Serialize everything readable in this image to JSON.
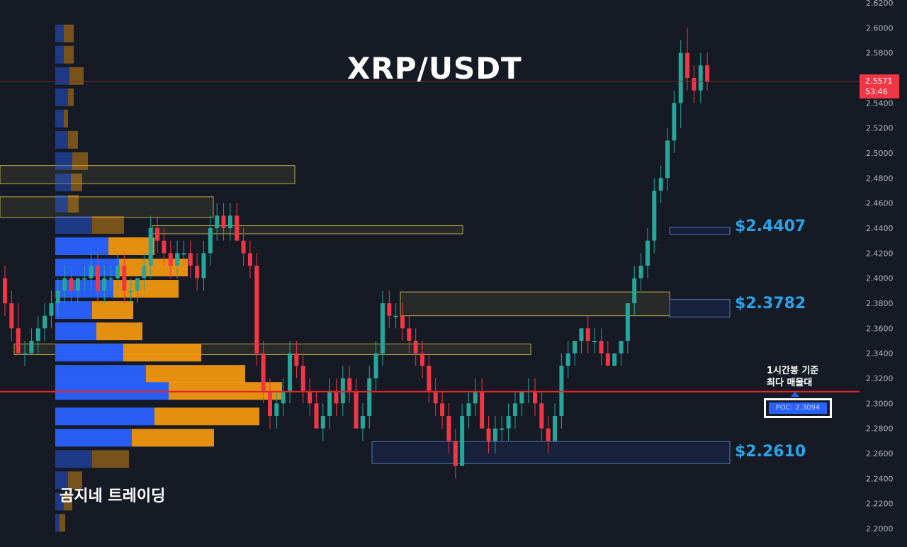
{
  "title": "XRP/USDT",
  "watermark": "곰지네 트레이딩",
  "levels": [
    {
      "label": "$2.4407",
      "price": 2.4407
    },
    {
      "label": "$2.3782",
      "price": 2.3782
    },
    {
      "label": "$2.2610",
      "price": 2.261
    }
  ],
  "annotation": {
    "line1": "1시간봉 기준",
    "line2": "최다 매물대"
  },
  "poc_label": "POC: 2.3094",
  "current_price": {
    "price": "2.5571",
    "countdown": "53:46"
  },
  "colors": {
    "background": "#161a25",
    "up": "#26a69a",
    "down": "#f23645",
    "level_text": "#2aa3e8",
    "poc_line": "#e0262b",
    "vp_blue": "#2962ff",
    "vp_orange": "#f0960f"
  },
  "chart_data": {
    "type": "candlestick",
    "title": "XRP/USDT",
    "timeframe": "1h",
    "ylim": [
      2.19,
      2.625
    ],
    "y_ticks": [
      "2.6200",
      "2.6000",
      "2.5800",
      "2.5400",
      "2.5200",
      "2.5000",
      "2.4800",
      "2.4600",
      "2.4400",
      "2.4200",
      "2.4000",
      "2.3800",
      "2.3600",
      "2.3400",
      "2.3200",
      "2.3000",
      "2.2800",
      "2.2600",
      "2.2400",
      "2.2200",
      "2.2000"
    ],
    "poc": 2.3094,
    "last_price": 2.5571,
    "candles": [
      [
        2.4,
        2.41,
        2.37,
        2.38
      ],
      [
        2.38,
        2.39,
        2.35,
        2.36
      ],
      [
        2.36,
        2.38,
        2.34,
        2.34
      ],
      [
        2.34,
        2.35,
        2.33,
        2.34
      ],
      [
        2.34,
        2.36,
        2.34,
        2.35
      ],
      [
        2.35,
        2.37,
        2.34,
        2.36
      ],
      [
        2.36,
        2.38,
        2.35,
        2.37
      ],
      [
        2.37,
        2.39,
        2.36,
        2.38
      ],
      [
        2.38,
        2.4,
        2.37,
        2.39
      ],
      [
        2.39,
        2.41,
        2.38,
        2.4
      ],
      [
        2.4,
        2.41,
        2.38,
        2.39
      ],
      [
        2.39,
        2.4,
        2.38,
        2.4
      ],
      [
        2.4,
        2.41,
        2.39,
        2.4
      ],
      [
        2.4,
        2.42,
        2.39,
        2.41
      ],
      [
        2.41,
        2.42,
        2.38,
        2.39
      ],
      [
        2.39,
        2.41,
        2.38,
        2.4
      ],
      [
        2.4,
        2.41,
        2.39,
        2.4
      ],
      [
        2.4,
        2.42,
        2.39,
        2.41
      ],
      [
        2.41,
        2.42,
        2.38,
        2.39
      ],
      [
        2.39,
        2.4,
        2.38,
        2.39
      ],
      [
        2.39,
        2.4,
        2.38,
        2.4
      ],
      [
        2.4,
        2.42,
        2.39,
        2.41
      ],
      [
        2.41,
        2.45,
        2.4,
        2.44
      ],
      [
        2.44,
        2.45,
        2.42,
        2.43
      ],
      [
        2.43,
        2.44,
        2.41,
        2.42
      ],
      [
        2.42,
        2.43,
        2.4,
        2.41
      ],
      [
        2.41,
        2.43,
        2.4,
        2.42
      ],
      [
        2.42,
        2.43,
        2.41,
        2.42
      ],
      [
        2.42,
        2.43,
        2.4,
        2.41
      ],
      [
        2.41,
        2.42,
        2.39,
        2.4
      ],
      [
        2.4,
        2.43,
        2.39,
        2.42
      ],
      [
        2.42,
        2.45,
        2.41,
        2.44
      ],
      [
        2.44,
        2.46,
        2.43,
        2.45
      ],
      [
        2.45,
        2.46,
        2.43,
        2.44
      ],
      [
        2.44,
        2.46,
        2.43,
        2.45
      ],
      [
        2.45,
        2.46,
        2.43,
        2.43
      ],
      [
        2.43,
        2.44,
        2.41,
        2.42
      ],
      [
        2.42,
        2.43,
        2.4,
        2.41
      ],
      [
        2.41,
        2.42,
        2.33,
        2.34
      ],
      [
        2.34,
        2.35,
        2.3,
        2.31
      ],
      [
        2.31,
        2.32,
        2.28,
        2.29
      ],
      [
        2.29,
        2.31,
        2.28,
        2.3
      ],
      [
        2.3,
        2.32,
        2.29,
        2.31
      ],
      [
        2.31,
        2.35,
        2.3,
        2.34
      ],
      [
        2.34,
        2.35,
        2.32,
        2.33
      ],
      [
        2.33,
        2.34,
        2.3,
        2.31
      ],
      [
        2.31,
        2.32,
        2.29,
        2.3
      ],
      [
        2.3,
        2.31,
        2.28,
        2.28
      ],
      [
        2.28,
        2.3,
        2.27,
        2.29
      ],
      [
        2.29,
        2.32,
        2.28,
        2.31
      ],
      [
        2.31,
        2.32,
        2.29,
        2.3
      ],
      [
        2.3,
        2.33,
        2.29,
        2.32
      ],
      [
        2.32,
        2.33,
        2.3,
        2.31
      ],
      [
        2.31,
        2.32,
        2.28,
        2.28
      ],
      [
        2.28,
        2.3,
        2.27,
        2.29
      ],
      [
        2.29,
        2.33,
        2.28,
        2.32
      ],
      [
        2.32,
        2.35,
        2.31,
        2.34
      ],
      [
        2.34,
        2.39,
        2.33,
        2.38
      ],
      [
        2.38,
        2.39,
        2.36,
        2.37
      ],
      [
        2.37,
        2.38,
        2.36,
        2.37
      ],
      [
        2.37,
        2.38,
        2.35,
        2.36
      ],
      [
        2.36,
        2.37,
        2.34,
        2.35
      ],
      [
        2.35,
        2.36,
        2.33,
        2.34
      ],
      [
        2.34,
        2.35,
        2.32,
        2.33
      ],
      [
        2.33,
        2.34,
        2.3,
        2.31
      ],
      [
        2.31,
        2.32,
        2.29,
        2.3
      ],
      [
        2.3,
        2.31,
        2.28,
        2.29
      ],
      [
        2.29,
        2.3,
        2.26,
        2.27
      ],
      [
        2.27,
        2.28,
        2.24,
        2.25
      ],
      [
        2.25,
        2.3,
        2.25,
        2.29
      ],
      [
        2.29,
        2.31,
        2.28,
        2.3
      ],
      [
        2.3,
        2.32,
        2.29,
        2.31
      ],
      [
        2.31,
        2.32,
        2.28,
        2.28
      ],
      [
        2.28,
        2.29,
        2.26,
        2.27
      ],
      [
        2.27,
        2.29,
        2.26,
        2.28
      ],
      [
        2.28,
        2.29,
        2.27,
        2.28
      ],
      [
        2.28,
        2.3,
        2.27,
        2.29
      ],
      [
        2.29,
        2.31,
        2.28,
        2.3
      ],
      [
        2.3,
        2.31,
        2.29,
        2.31
      ],
      [
        2.31,
        2.32,
        2.3,
        2.31
      ],
      [
        2.31,
        2.32,
        2.29,
        2.3
      ],
      [
        2.3,
        2.31,
        2.27,
        2.28
      ],
      [
        2.28,
        2.29,
        2.26,
        2.27
      ],
      [
        2.27,
        2.3,
        2.27,
        2.29
      ],
      [
        2.29,
        2.34,
        2.28,
        2.33
      ],
      [
        2.33,
        2.35,
        2.32,
        2.34
      ],
      [
        2.34,
        2.35,
        2.33,
        2.35
      ],
      [
        2.35,
        2.36,
        2.34,
        2.36
      ],
      [
        2.36,
        2.37,
        2.34,
        2.35
      ],
      [
        2.35,
        2.36,
        2.34,
        2.35
      ],
      [
        2.35,
        2.36,
        2.33,
        2.34
      ],
      [
        2.34,
        2.35,
        2.33,
        2.33
      ],
      [
        2.33,
        2.34,
        2.33,
        2.34
      ],
      [
        2.34,
        2.35,
        2.33,
        2.35
      ],
      [
        2.35,
        2.38,
        2.34,
        2.38
      ],
      [
        2.38,
        2.41,
        2.37,
        2.4
      ],
      [
        2.4,
        2.42,
        2.39,
        2.41
      ],
      [
        2.41,
        2.44,
        2.4,
        2.43
      ],
      [
        2.43,
        2.48,
        2.42,
        2.47
      ],
      [
        2.47,
        2.49,
        2.46,
        2.48
      ],
      [
        2.48,
        2.52,
        2.47,
        2.51
      ],
      [
        2.51,
        2.55,
        2.5,
        2.54
      ],
      [
        2.54,
        2.59,
        2.52,
        2.58
      ],
      [
        2.58,
        2.6,
        2.55,
        2.56
      ],
      [
        2.56,
        2.57,
        2.54,
        2.55
      ],
      [
        2.55,
        2.58,
        2.54,
        2.57
      ],
      [
        2.57,
        2.58,
        2.55,
        2.5571
      ]
    ],
    "volume_profile": [
      {
        "price": 2.595,
        "up": 12,
        "down": 14
      },
      {
        "price": 2.578,
        "up": 12,
        "down": 14
      },
      {
        "price": 2.561,
        "up": 20,
        "down": 20
      },
      {
        "price": 2.544,
        "up": 18,
        "down": 8
      },
      {
        "price": 2.527,
        "up": 12,
        "down": 6
      },
      {
        "price": 2.51,
        "up": 18,
        "down": 14
      },
      {
        "price": 2.493,
        "up": 24,
        "down": 22
      },
      {
        "price": 2.476,
        "up": 22,
        "down": 16
      },
      {
        "price": 2.459,
        "up": 18,
        "down": 15
      },
      {
        "price": 2.442,
        "up": 52,
        "down": 45
      },
      {
        "price": 2.425,
        "up": 75,
        "down": 65
      },
      {
        "price": 2.408,
        "up": 90,
        "down": 97
      },
      {
        "price": 2.391,
        "up": 82,
        "down": 92
      },
      {
        "price": 2.374,
        "up": 52,
        "down": 58
      },
      {
        "price": 2.357,
        "up": 58,
        "down": 65
      },
      {
        "price": 2.34,
        "up": 96,
        "down": 110
      },
      {
        "price": 2.323,
        "up": 128,
        "down": 140
      },
      {
        "price": 2.3094,
        "up": 160,
        "down": 160
      },
      {
        "price": 2.289,
        "up": 140,
        "down": 148
      },
      {
        "price": 2.272,
        "up": 108,
        "down": 116
      },
      {
        "price": 2.255,
        "up": 52,
        "down": 52
      },
      {
        "price": 2.238,
        "up": 18,
        "down": 20
      },
      {
        "price": 2.221,
        "up": 12,
        "down": 12
      },
      {
        "price": 2.204,
        "up": 6,
        "down": 8
      }
    ],
    "zones": [
      {
        "price_hi": 2.4407,
        "price_lo": 2.4352,
        "label": "$2.4407"
      },
      {
        "price_hi": 2.383,
        "price_lo": 2.369,
        "label": "$2.3782"
      },
      {
        "price_hi": 2.2695,
        "price_lo": 2.252,
        "label": "$2.2610"
      }
    ],
    "yellow_zones": [
      {
        "hi": 2.49,
        "lo": 2.4755
      },
      {
        "hi": 2.465,
        "lo": 2.4485
      },
      {
        "hi": 2.442,
        "lo": 2.4355
      },
      {
        "hi": 2.389,
        "lo": 2.37
      },
      {
        "hi": 2.3475,
        "lo": 2.339
      }
    ]
  }
}
